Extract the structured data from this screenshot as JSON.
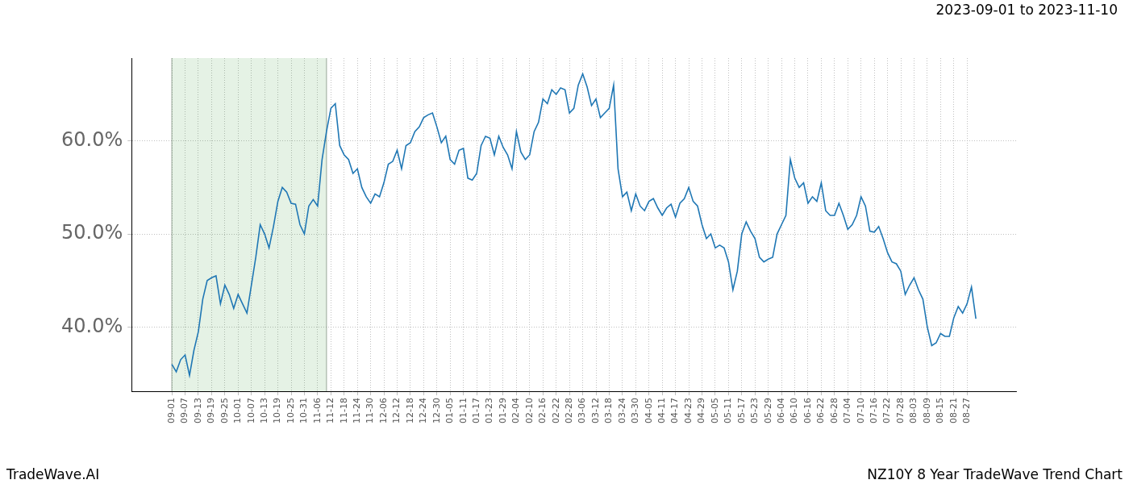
{
  "chart_data": {
    "type": "line",
    "title": "2023-09-01 to 2023-11-10",
    "annotations": [
      "TradeWave.AI",
      "NZ10Y 8 Year TradeWave Trend Chart"
    ],
    "categories": [
      "09-01",
      null,
      null,
      "09-07",
      null,
      null,
      "09-13",
      null,
      null,
      "09-19",
      null,
      null,
      "09-25",
      null,
      null,
      "10-01",
      null,
      null,
      "10-07",
      null,
      null,
      "10-13",
      null,
      null,
      "10-19",
      null,
      null,
      "10-25",
      null,
      null,
      "10-31",
      null,
      null,
      "11-06",
      null,
      null,
      "11-12",
      null,
      null,
      "11-18",
      null,
      null,
      "11-24",
      null,
      null,
      "11-30",
      null,
      null,
      "12-06",
      null,
      null,
      "12-12",
      null,
      null,
      "12-18",
      null,
      null,
      "12-24",
      null,
      null,
      "12-30",
      null,
      null,
      "01-05",
      null,
      null,
      "01-11",
      null,
      null,
      "01-17",
      null,
      null,
      "01-23",
      null,
      null,
      "01-29",
      null,
      null,
      "02-04",
      null,
      null,
      "02-10",
      null,
      null,
      "02-16",
      null,
      null,
      "02-22",
      null,
      null,
      "02-28",
      null,
      null,
      "03-06",
      null,
      null,
      "03-12",
      null,
      null,
      "03-18",
      null,
      null,
      "03-24",
      null,
      null,
      "03-30",
      null,
      null,
      "04-05",
      null,
      null,
      "04-11",
      null,
      null,
      "04-17",
      null,
      null,
      "04-23",
      null,
      null,
      "04-29",
      null,
      null,
      "05-05",
      null,
      null,
      "05-11",
      null,
      null,
      "05-17",
      null,
      null,
      "05-23",
      null,
      null,
      "05-29",
      null,
      null,
      "06-04",
      null,
      null,
      "06-10",
      null,
      null,
      "06-16",
      null,
      null,
      "06-22",
      null,
      null,
      "06-28",
      null,
      null,
      "07-04",
      null,
      null,
      "07-10",
      null,
      null,
      "07-16",
      null,
      null,
      "07-22",
      null,
      null,
      "07-28",
      null,
      null,
      "08-03",
      null,
      null,
      "08-09",
      null,
      null,
      "08-15",
      null,
      null,
      "08-21",
      null,
      null,
      "08-27",
      null,
      null
    ],
    "values": [
      36.0,
      35.2,
      36.5,
      37.0,
      34.8,
      37.5,
      39.5,
      43.0,
      45.0,
      45.3,
      45.5,
      42.5,
      44.5,
      43.5,
      42.0,
      43.5,
      42.5,
      41.5,
      44.5,
      47.5,
      51.0,
      50.0,
      48.5,
      50.8,
      53.5,
      55.0,
      54.5,
      53.3,
      53.2,
      51.0,
      50.0,
      53.0,
      53.7,
      53.0,
      58.0,
      61.0,
      63.5,
      64.0,
      59.5,
      58.5,
      58.0,
      56.5,
      57.0,
      55.0,
      54.0,
      53.3,
      54.3,
      54.0,
      55.5,
      57.5,
      57.8,
      59.0,
      57.0,
      59.5,
      59.8,
      61.0,
      61.5,
      62.5,
      62.8,
      63.0,
      61.5,
      59.8,
      60.5,
      58.0,
      57.5,
      59.0,
      59.2,
      56.0,
      55.8,
      56.5,
      59.5,
      60.5,
      60.3,
      58.5,
      60.5,
      59.3,
      58.5,
      57.0,
      61.0,
      58.8,
      58.0,
      58.5,
      61.0,
      62.0,
      64.5,
      64.0,
      65.5,
      65.0,
      65.7,
      65.5,
      63.0,
      63.5,
      66.0,
      67.2,
      65.8,
      63.8,
      64.5,
      62.5,
      63.0,
      63.5,
      66.0,
      57.0,
      54.0,
      54.5,
      52.5,
      54.3,
      53.0,
      52.5,
      53.5,
      53.8,
      52.8,
      52.0,
      52.8,
      53.2,
      51.8,
      53.3,
      53.8,
      55.0,
      53.5,
      53.0,
      51.0,
      49.5,
      50.0,
      48.5,
      48.8,
      48.5,
      47.0,
      44.0,
      46.0,
      50.0,
      51.3,
      50.3,
      49.5,
      47.5,
      47.0,
      47.3,
      47.5,
      50.0,
      51.0,
      52.0,
      58.0,
      56.0,
      55.0,
      55.5,
      53.3,
      54.0,
      53.5,
      55.5,
      52.5,
      52.0,
      52.0,
      53.3,
      52.0,
      50.5,
      51.0,
      52.0,
      54.0,
      53.0,
      50.3,
      50.2,
      50.8,
      49.5,
      48.0,
      47.0,
      46.8,
      46.0,
      43.5,
      44.5,
      45.3,
      44.0,
      43.0,
      40.0,
      38.0,
      38.3,
      39.3,
      39.0,
      39.0,
      41.0,
      42.2,
      41.5,
      42.5,
      44.3,
      40.9
    ],
    "color": "#1f77b4",
    "highlight": [
      0,
      35
    ],
    "ylim": [
      33.1,
      68.9
    ],
    "yticks": [
      {
        "value": 40,
        "label": "40.0%"
      },
      {
        "value": 50,
        "label": "50.0%"
      },
      {
        "value": 60,
        "label": "60.0%"
      }
    ],
    "grid": true
  }
}
